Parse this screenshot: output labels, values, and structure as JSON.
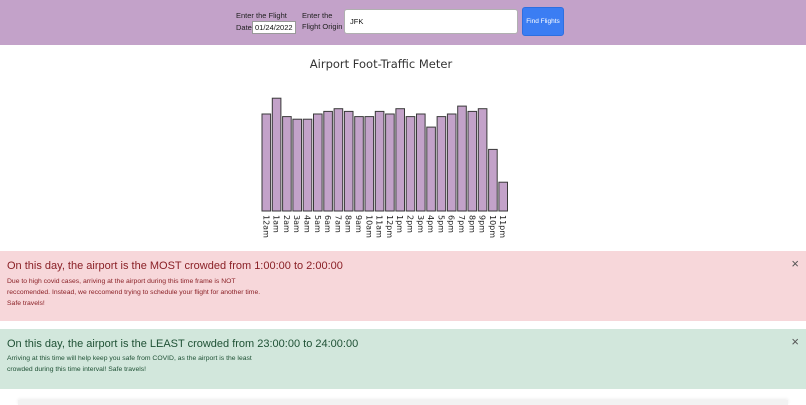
{
  "form": {
    "date_label_line1": "Enter the Flight",
    "date_label_line2": "Date:",
    "date_value": "01/24/2022",
    "origin_label_line1": "Enter the",
    "origin_label_line2": "Flight Origin",
    "origin_value": "JFK",
    "find_button_label": "Find Flights"
  },
  "chart_data": {
    "type": "bar",
    "title": "Airport Foot-Traffic Meter",
    "categories": [
      "12am",
      "1am",
      "2am",
      "3am",
      "4am",
      "5am",
      "6am",
      "7am",
      "8am",
      "9am",
      "10am",
      "11am",
      "12pm",
      "1pm",
      "2pm",
      "3pm",
      "4pm",
      "5pm",
      "6pm",
      "7pm",
      "8pm",
      "9pm",
      "10pm",
      "11pm"
    ],
    "values": [
      74,
      86,
      72,
      70,
      70,
      74,
      76,
      78,
      76,
      72,
      72,
      76,
      74,
      78,
      72,
      74,
      64,
      72,
      74,
      80,
      76,
      78,
      47,
      22
    ],
    "xlabel": "",
    "ylabel": "",
    "ylim": [
      0,
      90
    ],
    "grid": false,
    "bar_color": "#c3a2c9"
  },
  "alerts": {
    "most": {
      "heading": "On this day, the airport is the MOST crowded from 1:00:00 to 2:00:00",
      "text": "Due to high covid cases, arriving at the airport during this time frame is NOT reccomended. Instead, we reccomend trying to schedule your flight for another time. Safe travels!",
      "close": "×"
    },
    "least": {
      "heading": "On this day, the airport is the LEAST crowded from 23:00:00 to 24:00:00",
      "text": "Arriving at this time will help keep you safe from COVID, as the airport is the least crowded during this time interval! Safe travels!",
      "close": "×"
    }
  },
  "colors": {
    "header_bg": "#c3a2c9",
    "button_bg": "#3b7df3",
    "danger_bg": "#f7d7da",
    "danger_text": "#8a2026",
    "success_bg": "#d2e7dc",
    "success_text": "#1f5135"
  }
}
